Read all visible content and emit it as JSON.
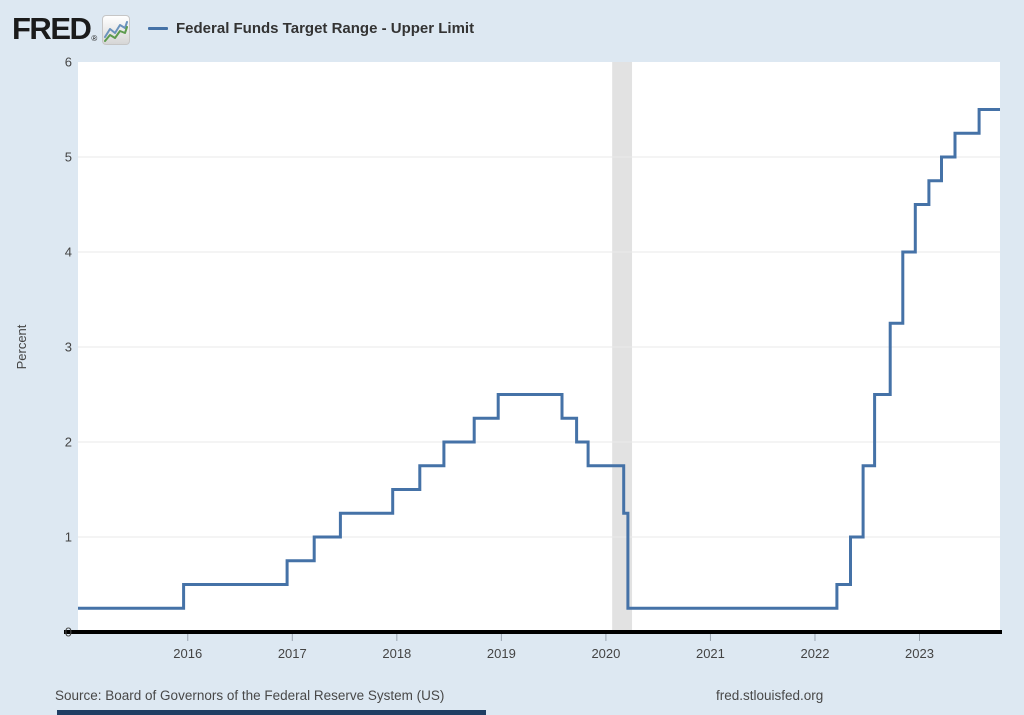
{
  "header": {
    "logo_text": "FRED",
    "registered_mark": "®",
    "legend": {
      "label": "Federal Funds Target Range - Upper Limit",
      "line_color": "#4572a7"
    }
  },
  "chart_data": {
    "type": "line",
    "subtype": "step-after",
    "title": "",
    "xlabel": "",
    "ylabel": "Percent",
    "xlim": [
      2014.95,
      2023.77
    ],
    "ylim": [
      0,
      6
    ],
    "x_ticks": [
      "2016",
      "2017",
      "2018",
      "2019",
      "2020",
      "2021",
      "2022",
      "2023"
    ],
    "x_tick_values": [
      2016,
      2017,
      2018,
      2019,
      2020,
      2021,
      2022,
      2023
    ],
    "y_ticks": [
      "0",
      "1",
      "2",
      "3",
      "4",
      "5",
      "6"
    ],
    "y_tick_values": [
      0,
      1,
      2,
      3,
      4,
      5,
      6
    ],
    "grid": "horizontal",
    "legend_position": "top-left",
    "series": [
      {
        "name": "Federal Funds Target Range - Upper Limit",
        "color": "#4572a7",
        "points": [
          [
            2014.95,
            0.25
          ],
          [
            2015.96,
            0.5
          ],
          [
            2016.95,
            0.75
          ],
          [
            2017.21,
            1.0
          ],
          [
            2017.46,
            1.25
          ],
          [
            2017.96,
            1.5
          ],
          [
            2018.22,
            1.75
          ],
          [
            2018.45,
            2.0
          ],
          [
            2018.74,
            2.25
          ],
          [
            2018.97,
            2.5
          ],
          [
            2019.58,
            2.25
          ],
          [
            2019.72,
            2.0
          ],
          [
            2019.83,
            1.75
          ],
          [
            2020.17,
            1.25
          ],
          [
            2020.21,
            0.25
          ],
          [
            2022.21,
            0.5
          ],
          [
            2022.34,
            1.0
          ],
          [
            2022.46,
            1.75
          ],
          [
            2022.57,
            2.5
          ],
          [
            2022.72,
            3.25
          ],
          [
            2022.84,
            4.0
          ],
          [
            2022.96,
            4.5
          ],
          [
            2023.09,
            4.75
          ],
          [
            2023.21,
            5.0
          ],
          [
            2023.34,
            5.25
          ],
          [
            2023.57,
            5.5
          ]
        ]
      }
    ],
    "recession_band": {
      "x_start": 2020.06,
      "x_end": 2020.25,
      "color": "#e2e2e2"
    }
  },
  "footer": {
    "source": "Source: Board of Governors of the Federal Reserve System (US)",
    "link": "fred.stlouisfed.org"
  },
  "colors": {
    "page_bg": "#dde8f2",
    "plot_bg": "#ffffff",
    "axis": "#000000",
    "grid": "#e9e9e9",
    "tick": "#9aa5b1",
    "text": "#444444"
  }
}
